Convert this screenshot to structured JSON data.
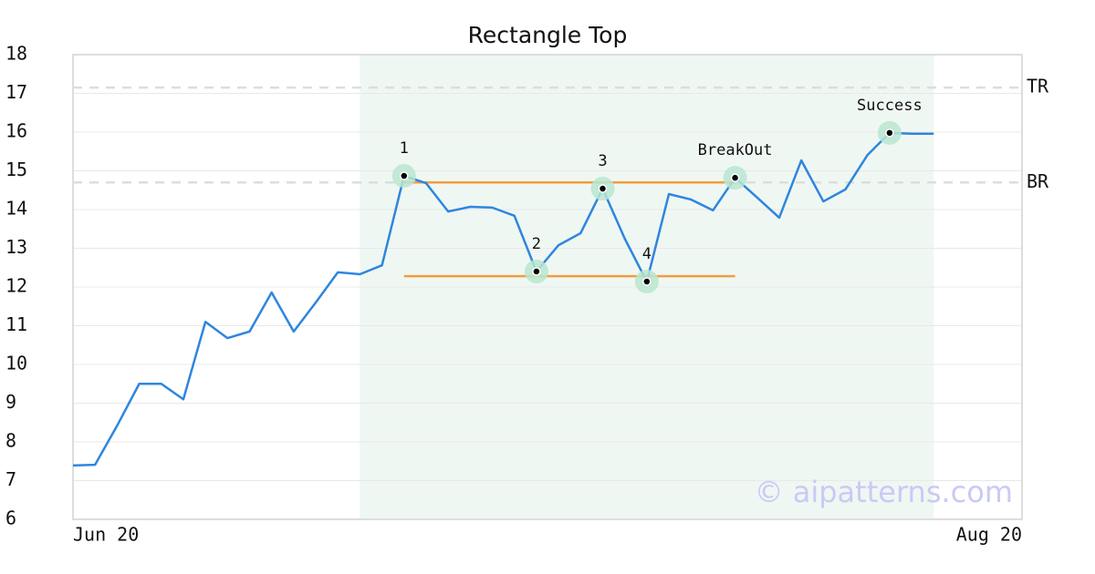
{
  "chart_data": {
    "type": "line",
    "title": "Rectangle Top",
    "x": [
      0,
      1,
      2,
      3,
      4,
      5,
      6,
      7,
      8,
      9,
      10,
      11,
      12,
      13,
      14,
      15,
      16,
      17,
      18,
      19,
      20,
      21,
      22,
      23,
      24,
      25,
      26,
      27,
      28,
      29,
      30,
      31,
      32,
      33,
      34,
      35,
      36,
      37,
      38,
      39
    ],
    "values": [
      7.39,
      7.41,
      8.42,
      9.5,
      9.5,
      9.1,
      11.1,
      10.68,
      10.85,
      11.86,
      10.85,
      11.6,
      12.38,
      12.33,
      12.56,
      14.87,
      14.68,
      13.95,
      14.07,
      14.05,
      13.84,
      12.4,
      13.08,
      13.39,
      14.54,
      13.25,
      12.14,
      14.4,
      14.26,
      13.98,
      14.82,
      14.31,
      13.79,
      15.27,
      14.21,
      14.52,
      15.41,
      15.98,
      15.96,
      15.96
    ],
    "color": "#2e86de",
    "xlim": [
      0,
      43
    ],
    "xticks": [
      {
        "value": 0,
        "label": "Jun 20"
      },
      {
        "value": 43,
        "label": "Aug 20"
      }
    ],
    "ylim": [
      6,
      18
    ],
    "yticks": [
      6,
      7,
      8,
      9,
      10,
      11,
      12,
      13,
      14,
      15,
      16,
      17,
      18
    ],
    "grid": true,
    "shaded_x": [
      13,
      39
    ],
    "levels": [
      {
        "label": "TR",
        "value": 17.15
      },
      {
        "label": "BR",
        "value": 14.7
      }
    ],
    "rectangle": {
      "top": 14.7,
      "bottom": 12.28,
      "x": [
        15,
        30
      ],
      "color": "#f39c3c"
    },
    "annotations": [
      {
        "text": "1",
        "x": 15,
        "pos": "above"
      },
      {
        "text": "2",
        "x": 21,
        "pos": "above"
      },
      {
        "text": "3",
        "x": 24,
        "pos": "above"
      },
      {
        "text": "4",
        "x": 26,
        "pos": "above"
      },
      {
        "text": "BreakOut",
        "x": 30,
        "pos": "above"
      },
      {
        "text": "Success",
        "x": 37,
        "pos": "above"
      }
    ],
    "watermark": "© aipatterns.com"
  }
}
